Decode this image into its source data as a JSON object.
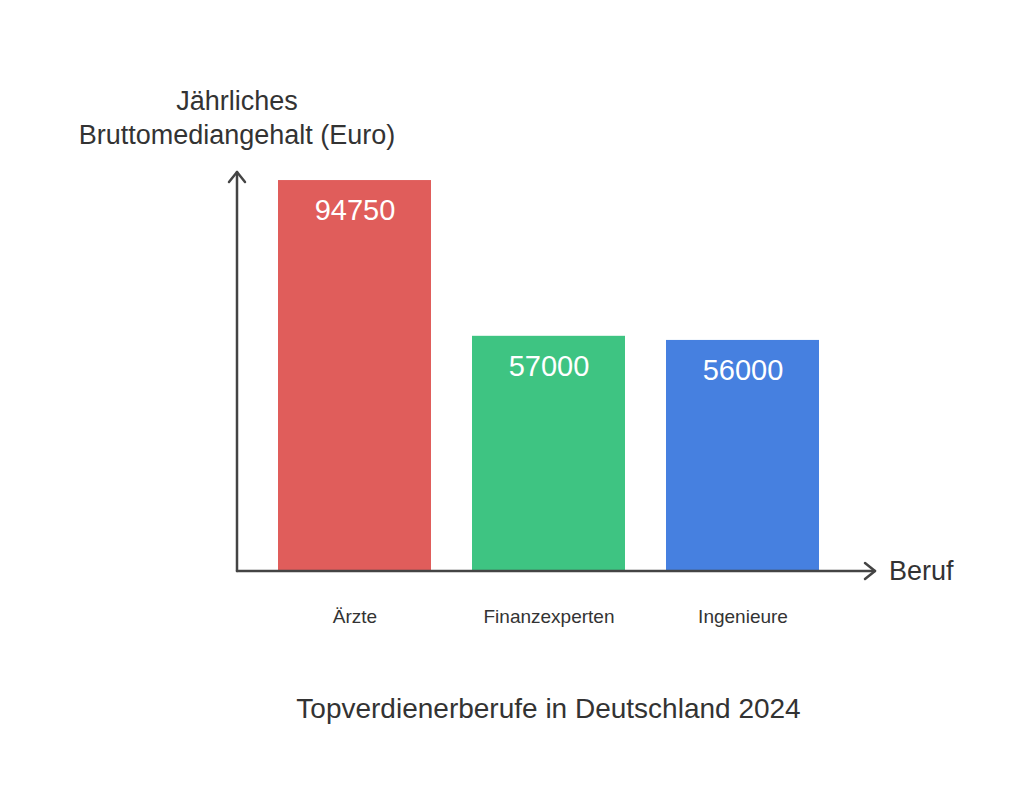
{
  "chart_data": {
    "type": "bar",
    "title": "Topverdienerberufe in Deutschland 2024",
    "x_label": "Beruf",
    "y_label": "Jährliches\nBruttomediangehalt (Euro)",
    "categories": [
      "Ärzte",
      "Finanzexperten",
      "Ingenieure"
    ],
    "values": [
      94750,
      57000,
      56000
    ],
    "colors": [
      "#e05d5b",
      "#3ec482",
      "#4680e0"
    ],
    "ylim": [
      0,
      96700
    ],
    "yticks": [],
    "grid": false,
    "data_labels": true,
    "tick_labels": "x"
  }
}
